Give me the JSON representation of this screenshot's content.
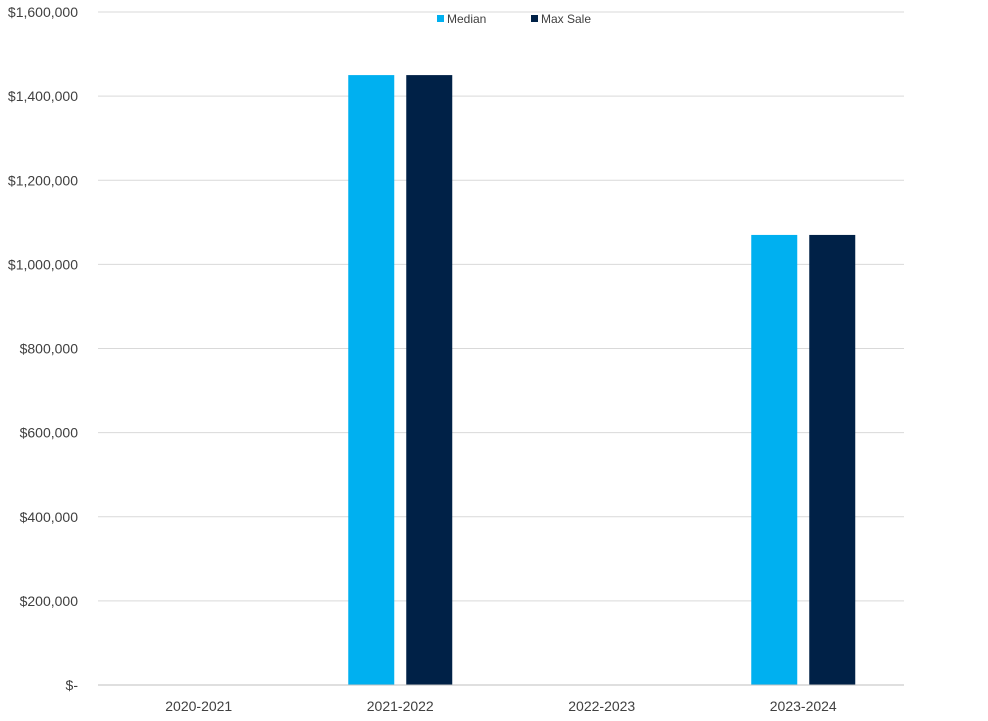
{
  "chart_data": {
    "type": "bar",
    "categories": [
      "2020-2021",
      "2021-2022",
      "2022-2023",
      "2023-2024"
    ],
    "series": [
      {
        "name": "Median",
        "color": "#00B0F0",
        "values": [
          0,
          1450000,
          0,
          1070000
        ]
      },
      {
        "name": "Max Sale",
        "color": "#002147",
        "values": [
          0,
          1450000,
          0,
          1070000
        ]
      }
    ],
    "y_ticks": [
      0,
      200000,
      400000,
      600000,
      800000,
      1000000,
      1200000,
      1400000,
      1600000
    ],
    "y_tick_labels": [
      "$-",
      "$200,000",
      "$400,000",
      "$600,000",
      "$800,000",
      "$1,000,000",
      "$1,200,000",
      "$1,400,000",
      "$1,600,000"
    ],
    "ylim": [
      0,
      1600000
    ],
    "grid": true,
    "legend_position": "top-center",
    "gridline_color": "#d9d9d9",
    "axis_color": "#bfbfbf"
  }
}
